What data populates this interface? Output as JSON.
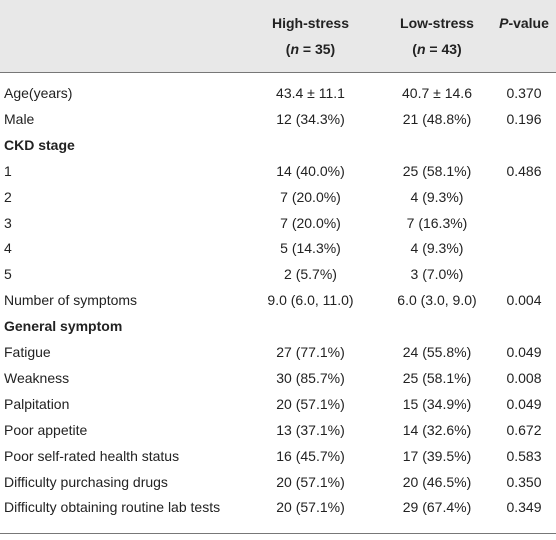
{
  "header": {
    "col1_line1": "High-stress",
    "col1_line2_pre": "(",
    "col1_line2_n": "n",
    "col1_line2_post": " = 35)",
    "col2_line1": "Low-stress",
    "col2_line2_pre": "(",
    "col2_line2_n": "n",
    "col2_line2_post": " = 43)",
    "pval_p": "P",
    "pval_rest": "-value"
  },
  "rows": [
    {
      "label": "Age(years)",
      "high": "43.4 ± 11.1",
      "low": "40.7 ± 14.6",
      "p": "0.370",
      "section": false
    },
    {
      "label": "Male",
      "high": "12 (34.3%)",
      "low": "21 (48.8%)",
      "p": "0.196",
      "section": false
    },
    {
      "label": "CKD stage",
      "high": "",
      "low": "",
      "p": "",
      "section": true
    },
    {
      "label": "1",
      "high": "14 (40.0%)",
      "low": "25 (58.1%)",
      "p": "0.486",
      "section": false
    },
    {
      "label": "2",
      "high": "7 (20.0%)",
      "low": "4 (9.3%)",
      "p": "",
      "section": false
    },
    {
      "label": "3",
      "high": "7 (20.0%)",
      "low": "7 (16.3%)",
      "p": "",
      "section": false
    },
    {
      "label": "4",
      "high": "5 (14.3%)",
      "low": "4 (9.3%)",
      "p": "",
      "section": false
    },
    {
      "label": "5",
      "high": "2 (5.7%)",
      "low": "3 (7.0%)",
      "p": "",
      "section": false
    },
    {
      "label": "Number of symptoms",
      "high": "9.0 (6.0, 11.0)",
      "low": "6.0 (3.0, 9.0)",
      "p": "0.004",
      "section": false
    },
    {
      "label": "General symptom",
      "high": "",
      "low": "",
      "p": "",
      "section": true
    },
    {
      "label": "Fatigue",
      "high": "27 (77.1%)",
      "low": "24 (55.8%)",
      "p": "0.049",
      "section": false
    },
    {
      "label": "Weakness",
      "high": "30 (85.7%)",
      "low": "25 (58.1%)",
      "p": "0.008",
      "section": false
    },
    {
      "label": "Palpitation",
      "high": "20 (57.1%)",
      "low": "15 (34.9%)",
      "p": "0.049",
      "section": false
    },
    {
      "label": "Poor appetite",
      "high": "13 (37.1%)",
      "low": "14 (32.6%)",
      "p": "0.672",
      "section": false
    },
    {
      "label": "Poor self-rated health status",
      "high": "16 (45.7%)",
      "low": "17 (39.5%)",
      "p": "0.583",
      "section": false
    },
    {
      "label": "Difficulty purchasing drugs",
      "high": "20 (57.1%)",
      "low": "20 (46.5%)",
      "p": "0.350",
      "section": false
    },
    {
      "label": "Difficulty obtaining routine lab tests",
      "high": "20 (57.1%)",
      "low": "29 (67.4%)",
      "p": "0.349",
      "section": false
    }
  ]
}
